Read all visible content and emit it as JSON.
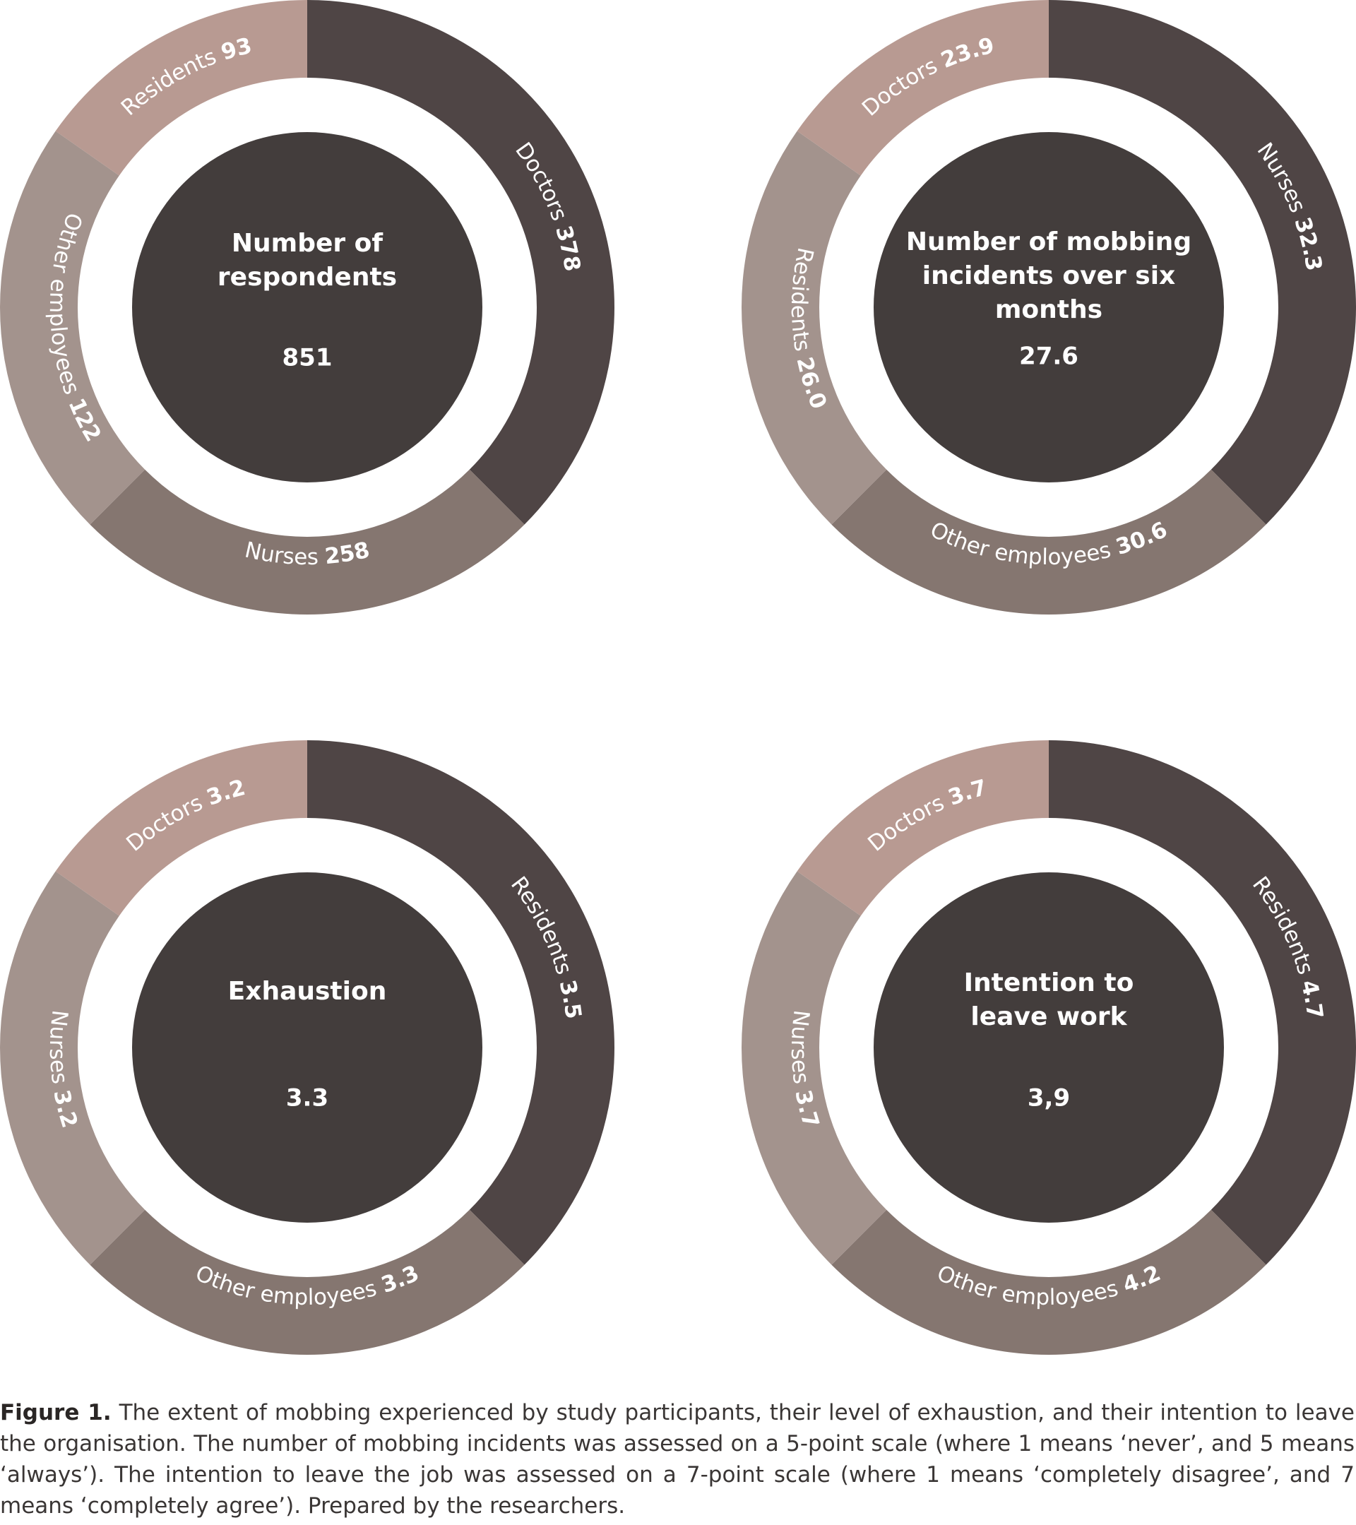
{
  "chart_data": [
    {
      "type": "pie",
      "title": "Number of respondents",
      "total": "851",
      "slices": [
        {
          "label": "Doctors",
          "value_text": "378",
          "value": 378,
          "color": "#4f4545"
        },
        {
          "label": "Nurses",
          "value_text": "258",
          "value": 258,
          "color": "#857670"
        },
        {
          "label": "Other employees",
          "value_text": "122",
          "value": 122,
          "color": "#a3938d"
        },
        {
          "label": "Residents",
          "value_text": "93",
          "value": 93,
          "color": "#b89a92"
        }
      ]
    },
    {
      "type": "pie",
      "title": "Number of mobbing incidents over six months",
      "total": "27.6",
      "slices": [
        {
          "label": "Nurses",
          "value_text": "32.3",
          "value": 32.3,
          "color": "#4f4545"
        },
        {
          "label": "Other employees",
          "value_text": "30.6",
          "value": 30.6,
          "color": "#857670"
        },
        {
          "label": "Residents",
          "value_text": "26.0",
          "value": 26.0,
          "color": "#a3938d"
        },
        {
          "label": "Doctors",
          "value_text": "23.9",
          "value": 23.9,
          "color": "#b89a92"
        }
      ]
    },
    {
      "type": "pie",
      "title": "Exhaustion",
      "total": "3.3",
      "slices": [
        {
          "label": "Residents",
          "value_text": "3.5",
          "value": 3.5,
          "color": "#4f4545"
        },
        {
          "label": "Other employees",
          "value_text": "3.3",
          "value": 3.3,
          "color": "#857670"
        },
        {
          "label": "Nurses",
          "value_text": "3.2",
          "value": 3.2,
          "color": "#a3938d"
        },
        {
          "label": "Doctors",
          "value_text": "3.2",
          "value": 3.2,
          "color": "#b89a92"
        }
      ]
    },
    {
      "type": "pie",
      "title": "Intention to leave work",
      "total": "3,9",
      "slices": [
        {
          "label": "Residents",
          "value_text": "4.7",
          "value": 4.7,
          "color": "#4f4545"
        },
        {
          "label": "Other employees",
          "value_text": "4.2",
          "value": 4.2,
          "color": "#857670"
        },
        {
          "label": "Nurses",
          "value_text": "3.7",
          "value": 3.7,
          "color": "#a3938d"
        },
        {
          "label": "Doctors",
          "value_text": "3.7",
          "value": 3.7,
          "color": "#b89a92"
        }
      ]
    }
  ],
  "caption": {
    "label": "Figure 1.",
    "text": "The extent of mobbing experienced by study participants, their level of exhaustion, and their intention to leave the organisation. The number of mobbing incidents was assessed on a 5-point scale (where 1 means ‘never’, and 5 means ‘always’). The intention to leave the job was assessed on a 7-point scale (where 1 means ‘completely disagree’, and 7 means ‘completely agree’). Prepared by the researchers."
  },
  "colors": {
    "center_disc": "#433d3c",
    "center_text": "#ffffff",
    "ring_text": "#ffffff"
  }
}
